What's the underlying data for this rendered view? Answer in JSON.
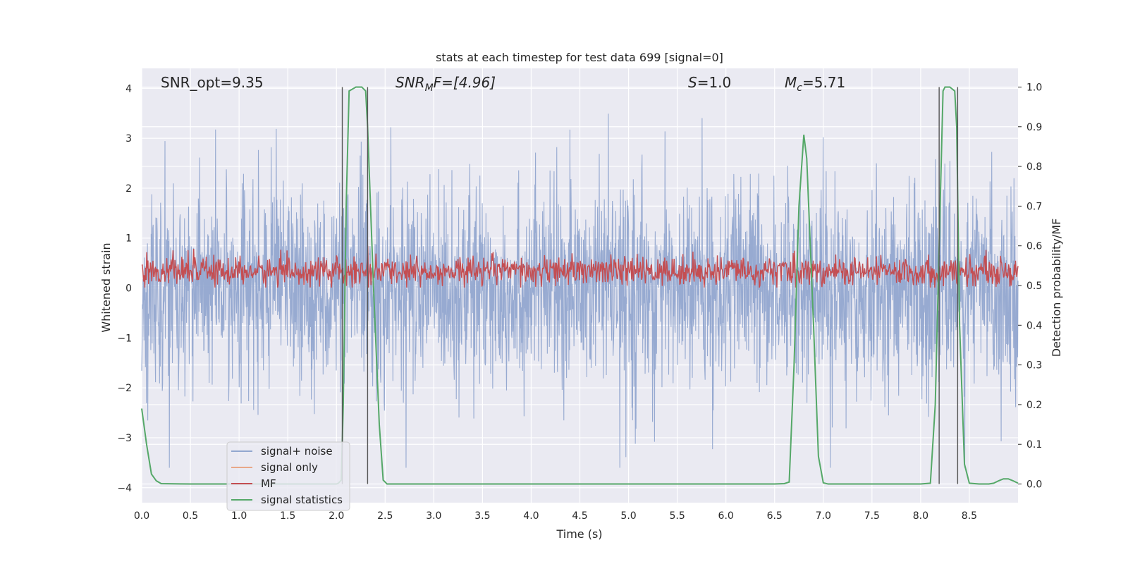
{
  "chart_data": {
    "type": "line",
    "title": "stats at each timestep for test data 699 [signal=0]",
    "xlabel": "Time (s)",
    "ylabel_left": "Whitened strain",
    "ylabel_right": "Detection probability/MF",
    "xlim": [
      0,
      9.0
    ],
    "ylim_left": [
      -4.3,
      4.4
    ],
    "ylim_right": [
      -0.047,
      1.047
    ],
    "x_ticks": [
      "0.0",
      "0.5",
      "1.0",
      "1.5",
      "2.0",
      "2.5",
      "3.0",
      "3.5",
      "4.0",
      "4.5",
      "5.0",
      "5.5",
      "6.0",
      "6.5",
      "7.0",
      "7.5",
      "8.0",
      "8.5"
    ],
    "y_left_ticks": [
      "−4",
      "−3",
      "−2",
      "−1",
      "0",
      "1",
      "2",
      "3",
      "4"
    ],
    "y_right_ticks": [
      "0.0",
      "0.1",
      "0.2",
      "0.3",
      "0.4",
      "0.5",
      "0.6",
      "0.7",
      "0.8",
      "0.9",
      "1.0"
    ],
    "grid": true,
    "legend_position": "lower-left",
    "annotations": {
      "snr_opt": "SNR_opt=9.35",
      "snr_mf_main": "SNR",
      "snr_mf_sub": "M",
      "snr_mf_rest": "F=[4.96]",
      "s_var": "S",
      "s_rest": "=1.0",
      "mc_var": "M",
      "mc_sub": "c",
      "mc_rest": "=5.71"
    },
    "series": [
      {
        "name": "signal+ noise",
        "color": "#92a7cf",
        "axis": "left",
        "description_values": "dense noise, amplitude mostly within ±2.5, peaks to about 4 and -3.6"
      },
      {
        "name": "signal only",
        "color": "#e8a888",
        "axis": "left",
        "values": []
      },
      {
        "name": "MF",
        "color": "#c44e52",
        "axis": "right",
        "description_values": "noisy trace around 0.53, range about 0.49 to 0.60"
      },
      {
        "name": "signal statistics",
        "color": "#55a868",
        "axis": "right",
        "x": [
          0.0,
          0.05,
          0.1,
          0.15,
          0.2,
          0.5,
          1.0,
          1.5,
          2.0,
          2.02,
          2.05,
          2.07,
          2.1,
          2.13,
          2.2,
          2.26,
          2.3,
          2.32,
          2.38,
          2.44,
          2.48,
          2.52,
          3.0,
          4.0,
          5.0,
          6.0,
          6.5,
          6.6,
          6.65,
          6.7,
          6.75,
          6.8,
          6.83,
          6.85,
          6.9,
          6.95,
          7.0,
          7.05,
          7.1,
          7.5,
          8.0,
          8.1,
          8.15,
          8.2,
          8.23,
          8.25,
          8.3,
          8.35,
          8.37,
          8.4,
          8.45,
          8.5,
          8.6,
          8.7,
          8.75,
          8.8,
          8.85,
          8.9,
          8.95,
          9.0
        ],
        "y": [
          0.19,
          0.1,
          0.025,
          0.008,
          0.001,
          0.0,
          0.0,
          0.0,
          0.0,
          0.002,
          0.01,
          0.2,
          0.7,
          0.99,
          1.0,
          1.0,
          0.99,
          0.9,
          0.5,
          0.15,
          0.01,
          0.0,
          0.0,
          0.0,
          0.0,
          0.0,
          0.0,
          0.001,
          0.005,
          0.3,
          0.7,
          0.88,
          0.82,
          0.7,
          0.4,
          0.07,
          0.003,
          0.0,
          0.0,
          0.0,
          0.0,
          0.002,
          0.2,
          0.7,
          0.99,
          1.0,
          1.0,
          0.99,
          0.9,
          0.4,
          0.05,
          0.002,
          0.0,
          0.0,
          0.002,
          0.008,
          0.013,
          0.013,
          0.008,
          0.002
        ]
      }
    ],
    "vertical_lines_x": [
      2.06,
      2.32,
      8.19,
      8.38
    ]
  }
}
